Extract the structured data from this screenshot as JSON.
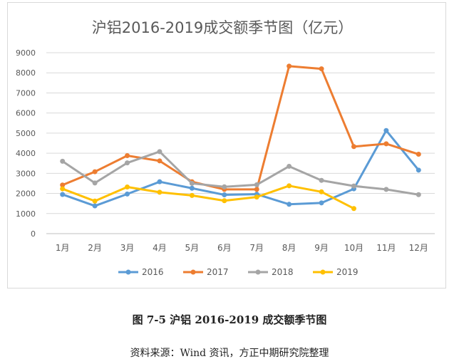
{
  "chart_data": {
    "type": "line",
    "title": "沪铝2016-2019成交额季节图（亿元）",
    "categories": [
      "1月",
      "2月",
      "3月",
      "4月",
      "5月",
      "6月",
      "7月",
      "8月",
      "9月",
      "10月",
      "11月",
      "12月"
    ],
    "ylim": [
      0,
      9000
    ],
    "yticks": [
      0,
      1000,
      2000,
      3000,
      4000,
      5000,
      6000,
      7000,
      8000,
      9000
    ],
    "grid": true,
    "legend_position": "bottom",
    "series": [
      {
        "name": "2016",
        "color": "#5b9bd5",
        "values": [
          1950,
          1380,
          1970,
          2580,
          2260,
          1930,
          1960,
          1460,
          1530,
          2230,
          5130,
          3160
        ]
      },
      {
        "name": "2017",
        "color": "#ed7d31",
        "values": [
          2420,
          3080,
          3880,
          3620,
          2580,
          2200,
          2200,
          8330,
          8200,
          4330,
          4470,
          3950
        ]
      },
      {
        "name": "2018",
        "color": "#a5a5a5",
        "values": [
          3600,
          2520,
          3520,
          4080,
          2500,
          2330,
          2430,
          3350,
          2650,
          2370,
          2200,
          1940
        ]
      },
      {
        "name": "2019",
        "color": "#ffc000",
        "values": [
          2230,
          1620,
          2320,
          2060,
          1900,
          1640,
          1820,
          2380,
          2080,
          1250,
          null,
          null
        ]
      }
    ]
  },
  "figure_caption": "图 7-5 沪铝 2016-2019 成交额季节图",
  "source_note": "资料来源：Wind 资讯，方正中期研究院整理"
}
